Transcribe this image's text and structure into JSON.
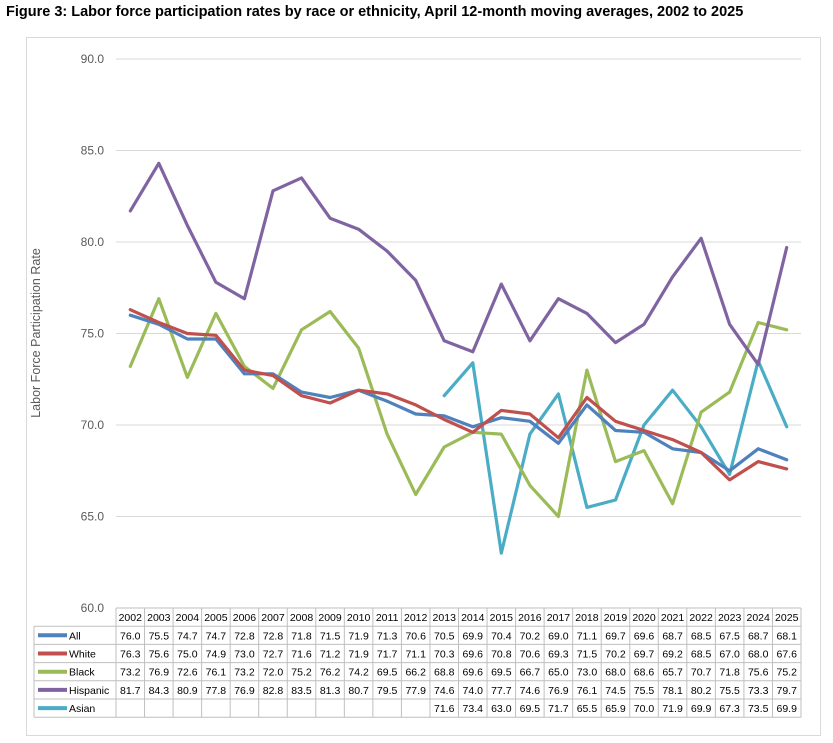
{
  "title": "Figure 3: Labor force participation rates by race or ethnicity, April 12-month moving averages, 2002 to 2025",
  "chart_data": {
    "type": "line",
    "title": "Figure 3: Labor force participation rates by race or ethnicity, April 12-month moving averages, 2002 to 2025",
    "xlabel": "",
    "ylabel": "Labor Force Participation Rate",
    "ylim": [
      60,
      90
    ],
    "yticks": [
      "60.0",
      "65.0",
      "70.0",
      "75.0",
      "80.0",
      "85.0",
      "90.0"
    ],
    "grid": true,
    "legend": "data table below chart",
    "categories": [
      "2002",
      "2003",
      "2004",
      "2005",
      "2006",
      "2007",
      "2008",
      "2009",
      "2010",
      "2011",
      "2012",
      "2013",
      "2014",
      "2015",
      "2016",
      "2017",
      "2018",
      "2019",
      "2020",
      "2021",
      "2022",
      "2023",
      "2024",
      "2025"
    ],
    "series": [
      {
        "name": "All",
        "color": "#4f81bd",
        "values": [
          76.0,
          75.5,
          74.7,
          74.7,
          72.8,
          72.8,
          71.8,
          71.5,
          71.9,
          71.3,
          70.6,
          70.5,
          69.9,
          70.4,
          70.2,
          69.0,
          71.1,
          69.7,
          69.6,
          68.7,
          68.5,
          67.5,
          68.7,
          68.1
        ]
      },
      {
        "name": "White",
        "color": "#c0504d",
        "values": [
          76.3,
          75.6,
          75.0,
          74.9,
          73.0,
          72.7,
          71.6,
          71.2,
          71.9,
          71.7,
          71.1,
          70.3,
          69.6,
          70.8,
          70.6,
          69.3,
          71.5,
          70.2,
          69.7,
          69.2,
          68.5,
          67.0,
          68.0,
          67.6
        ]
      },
      {
        "name": "Black",
        "color": "#9bbb59",
        "values": [
          73.2,
          76.9,
          72.6,
          76.1,
          73.2,
          72.0,
          75.2,
          76.2,
          74.2,
          69.5,
          66.2,
          68.8,
          69.6,
          69.5,
          66.7,
          65.0,
          73.0,
          68.0,
          68.6,
          65.7,
          70.7,
          71.8,
          75.6,
          75.2
        ]
      },
      {
        "name": "Hispanic",
        "color": "#8064a2",
        "values": [
          81.7,
          84.3,
          80.9,
          77.8,
          76.9,
          82.8,
          83.5,
          81.3,
          80.7,
          79.5,
          77.9,
          74.6,
          74.0,
          77.7,
          74.6,
          76.9,
          76.1,
          74.5,
          75.5,
          78.1,
          80.2,
          75.5,
          73.3,
          79.7
        ]
      },
      {
        "name": "Asian",
        "color": "#4bacc6",
        "values": [
          null,
          null,
          null,
          null,
          null,
          null,
          null,
          null,
          null,
          null,
          null,
          71.6,
          73.4,
          63.0,
          69.5,
          71.7,
          65.5,
          65.9,
          70.0,
          71.9,
          69.9,
          67.3,
          73.5,
          69.9
        ]
      }
    ]
  }
}
